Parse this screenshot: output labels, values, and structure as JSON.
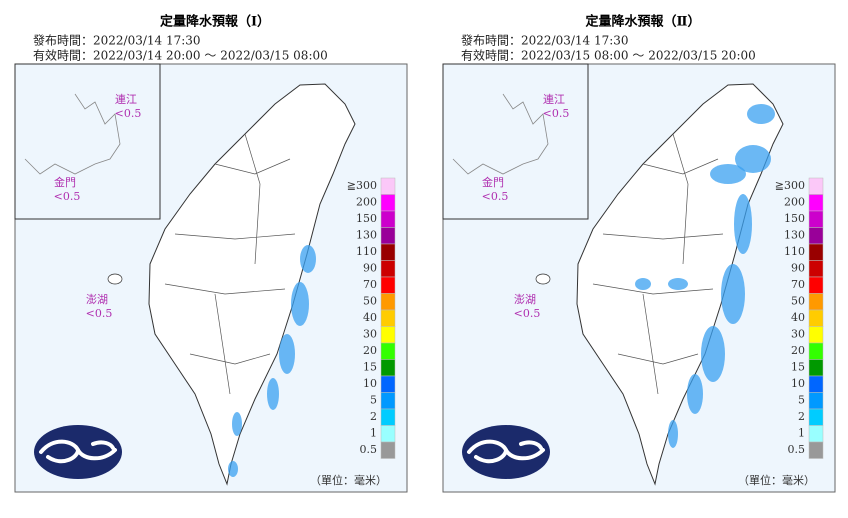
{
  "panels": [
    {
      "title": "定量降水預報（Ⅰ）",
      "issued": "發布時間：2022/03/14 17:30",
      "valid": "有效時間：2022/03/14 20:00 ～ 2022/03/15 08:00",
      "islands": [
        {
          "name": "連江",
          "value": "<0.5"
        },
        {
          "name": "金門",
          "value": "<0.5"
        },
        {
          "name": "澎湖",
          "value": "<0.5"
        }
      ]
    },
    {
      "title": "定量降水預報（Ⅱ）",
      "issued": "發布時間：2022/03/14 17:30",
      "valid": "有效時間：2022/03/15 08:00 ～ 2022/03/15 20:00",
      "islands": [
        {
          "name": "連江",
          "value": "<0.5"
        },
        {
          "name": "金門",
          "value": "<0.5"
        },
        {
          "name": "澎湖",
          "value": "<0.5"
        }
      ]
    }
  ],
  "legend": {
    "labels": [
      "≧300",
      "200",
      "150",
      "130",
      "110",
      "90",
      "70",
      "50",
      "40",
      "30",
      "20",
      "15",
      "10",
      "5",
      "2",
      "1",
      "0.5"
    ],
    "colors": [
      "#fbc8f8",
      "#ff00ff",
      "#cc00cc",
      "#990099",
      "#990000",
      "#cc0000",
      "#ff0000",
      "#ff9900",
      "#ffcc00",
      "#ffff00",
      "#33ff00",
      "#009900",
      "#0066ff",
      "#0099ff",
      "#00ccff",
      "#99ffff",
      "#999999"
    ]
  },
  "unit": "（單位：毫米）"
}
